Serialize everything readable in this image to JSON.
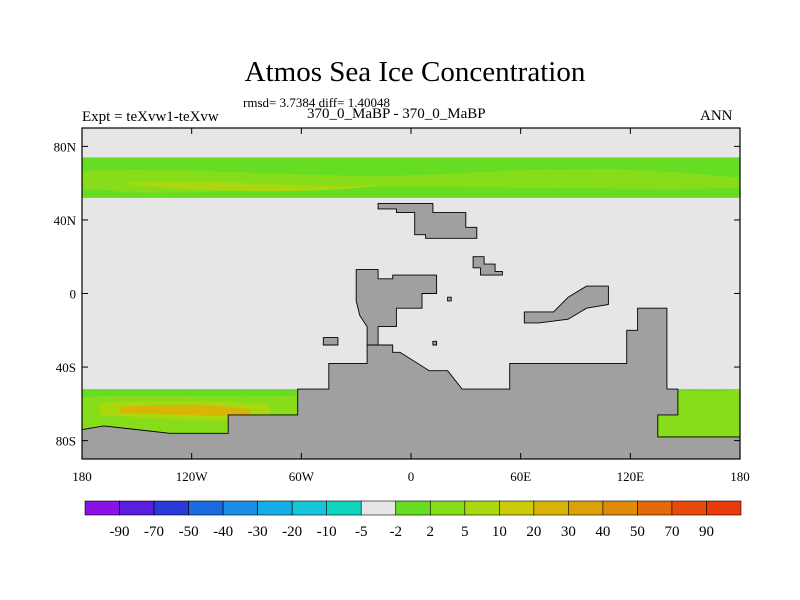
{
  "title": "Atmos Sea Ice Concentration",
  "stats": "rmsd= 3.7384 diff= 1.40048",
  "left_label": "Expt = teXvw1-teXvw",
  "center_label": "370_0_MaBP - 370_0_MaBP",
  "right_label": "ANN",
  "map": {
    "projection": "cylindrical-equidistant",
    "lon_range": [
      -180,
      180
    ],
    "lat_range": [
      -90,
      90
    ],
    "y_ticks": [
      {
        "lat": 80,
        "label": "80N"
      },
      {
        "lat": 40,
        "label": "40N"
      },
      {
        "lat": 0,
        "label": "0"
      },
      {
        "lat": -40,
        "label": "40S"
      },
      {
        "lat": -80,
        "label": "80S"
      }
    ],
    "x_ticks": [
      {
        "lon": -180,
        "label": "180"
      },
      {
        "lon": -120,
        "label": "120W"
      },
      {
        "lon": -60,
        "label": "60W"
      },
      {
        "lon": 0,
        "label": "0"
      },
      {
        "lon": 60,
        "label": "60E"
      },
      {
        "lon": 120,
        "label": "120E"
      },
      {
        "lon": 180,
        "label": "180"
      }
    ],
    "background_color": "#e6e6e6",
    "land_color": "#a0a0a0",
    "land_masks": [
      {
        "name": "land-laurentia",
        "points": [
          [
            -18,
            49
          ],
          [
            12,
            49
          ],
          [
            12,
            44
          ],
          [
            30,
            44
          ],
          [
            30,
            36
          ],
          [
            36,
            36
          ],
          [
            36,
            30
          ],
          [
            8,
            30
          ],
          [
            8,
            32
          ],
          [
            2,
            32
          ],
          [
            2,
            44
          ],
          [
            -8,
            44
          ],
          [
            -8,
            46
          ],
          [
            -18,
            46
          ]
        ]
      },
      {
        "name": "land-island-north",
        "points": [
          [
            34,
            20
          ],
          [
            40,
            20
          ],
          [
            40,
            16
          ],
          [
            46,
            16
          ],
          [
            46,
            12
          ],
          [
            50,
            12
          ],
          [
            50,
            10
          ],
          [
            38,
            10
          ],
          [
            38,
            14
          ],
          [
            34,
            14
          ]
        ]
      },
      {
        "name": "land-gondwana-west",
        "points": [
          [
            -30,
            13
          ],
          [
            -18,
            13
          ],
          [
            -18,
            8
          ],
          [
            -10,
            8
          ],
          [
            -10,
            10
          ],
          [
            14,
            10
          ],
          [
            14,
            0
          ],
          [
            6,
            0
          ],
          [
            6,
            -8
          ],
          [
            -8,
            -8
          ],
          [
            -8,
            -18
          ],
          [
            -18,
            -18
          ],
          [
            -18,
            -28
          ],
          [
            -24,
            -28
          ],
          [
            -24,
            -38
          ],
          [
            -45,
            -38
          ],
          [
            -45,
            -52
          ],
          [
            -62,
            -52
          ],
          [
            -62,
            -66
          ],
          [
            -100,
            -66
          ],
          [
            -100,
            -76
          ],
          [
            -132,
            -76
          ],
          [
            -168,
            -72
          ],
          [
            -180,
            -74
          ],
          [
            -180,
            -90
          ],
          [
            180,
            -90
          ],
          [
            180,
            -78
          ],
          [
            135,
            -78
          ],
          [
            135,
            -66
          ],
          [
            146,
            -66
          ],
          [
            146,
            -52
          ],
          [
            140,
            -52
          ],
          [
            140,
            -8
          ],
          [
            124,
            -8
          ],
          [
            124,
            -20
          ],
          [
            118,
            -20
          ],
          [
            118,
            -38
          ],
          [
            54,
            -38
          ],
          [
            54,
            -52
          ],
          [
            28,
            -52
          ],
          [
            20,
            -42
          ],
          [
            10,
            -42
          ],
          [
            -6,
            -32
          ],
          [
            -10,
            -32
          ],
          [
            -10,
            -28
          ],
          [
            -24,
            -28
          ],
          [
            -24,
            -18
          ],
          [
            -28,
            -12
          ],
          [
            -30,
            -4
          ]
        ]
      },
      {
        "name": "land-peninsula-east",
        "points": [
          [
            62,
            -10
          ],
          [
            78,
            -10
          ],
          [
            86,
            -2
          ],
          [
            96,
            4
          ],
          [
            108,
            4
          ],
          [
            108,
            -6
          ],
          [
            96,
            -8
          ],
          [
            86,
            -14
          ],
          [
            70,
            -16
          ],
          [
            62,
            -16
          ]
        ]
      },
      {
        "name": "land-islet-small",
        "points": [
          [
            20,
            -2
          ],
          [
            22,
            -2
          ],
          [
            22,
            -4
          ],
          [
            20,
            -4
          ]
        ]
      },
      {
        "name": "land-islet-west",
        "points": [
          [
            -48,
            -24
          ],
          [
            -40,
            -24
          ],
          [
            -40,
            -28
          ],
          [
            -48,
            -28
          ]
        ]
      },
      {
        "name": "land-islet-central",
        "points": [
          [
            12,
            -26
          ],
          [
            14,
            -26
          ],
          [
            14,
            -28
          ],
          [
            12,
            -28
          ]
        ]
      }
    ],
    "ice_north": {
      "lat_top": 74,
      "lat_bottom": 52
    },
    "ice_south": {
      "lat_top": -52,
      "lat_bottom": -84
    }
  },
  "colorbar": {
    "labels": [
      "-90",
      "-70",
      "-50",
      "-40",
      "-30",
      "-20",
      "-10",
      "-5",
      "-2",
      "2",
      "5",
      "10",
      "20",
      "30",
      "40",
      "50",
      "70",
      "90"
    ],
    "colors": [
      "#8b12e6",
      "#5a1ee0",
      "#2a3ad8",
      "#1a6ae0",
      "#1a8ee6",
      "#16aee6",
      "#16c6d8",
      "#10d6c0",
      "#e6e6e6",
      "#66dd22",
      "#88dd1a",
      "#aad80e",
      "#cccc08",
      "#d8b408",
      "#dca008",
      "#e08a0a",
      "#e46a08",
      "#e84a0a",
      "#e83a0a"
    ]
  }
}
